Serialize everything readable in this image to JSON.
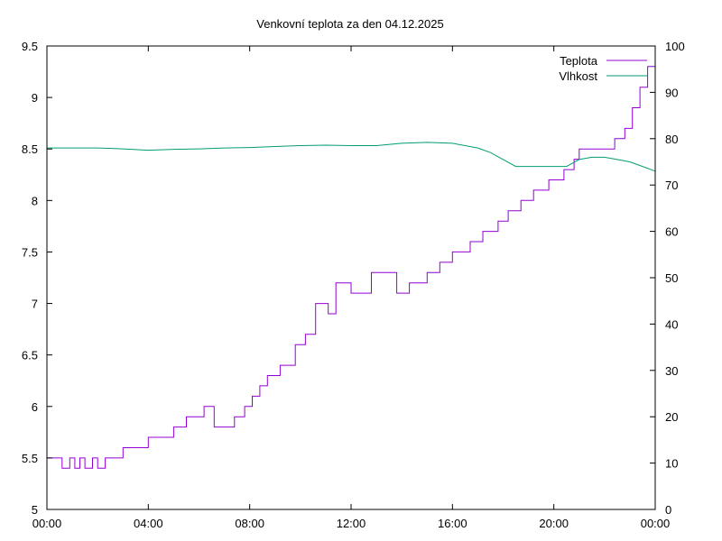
{
  "chart_data": {
    "type": "line",
    "title": "Venkovní teplota za den 04.12.2025",
    "xlabel": "",
    "ylabel": "",
    "y2label": "",
    "x_unit": "hours",
    "xlim": [
      0,
      24
    ],
    "ylim": [
      5,
      9.5
    ],
    "y2lim": [
      0,
      100
    ],
    "x_ticks": [
      0,
      4,
      8,
      12,
      16,
      20,
      24
    ],
    "x_tick_labels": [
      "00:00",
      "04:00",
      "08:00",
      "12:00",
      "16:00",
      "20:00",
      "00:00"
    ],
    "y_ticks": [
      5,
      5.5,
      6,
      6.5,
      7,
      7.5,
      8,
      8.5,
      9,
      9.5
    ],
    "y_tick_labels": [
      "5",
      "5.5",
      "6",
      "6.5",
      "7",
      "7.5",
      "8",
      "8.5",
      "9",
      "9.5"
    ],
    "y2_ticks": [
      0,
      10,
      20,
      30,
      40,
      50,
      60,
      70,
      80,
      90,
      100
    ],
    "y2_tick_labels": [
      "0",
      "10",
      "20",
      "30",
      "40",
      "50",
      "60",
      "70",
      "80",
      "90",
      "100"
    ],
    "grid": false,
    "legend_position": "top-right",
    "series": [
      {
        "name": "Teplota",
        "axis": "left",
        "color": "#9400d3",
        "step": true,
        "x": [
          0,
          0.6,
          0.9,
          1.1,
          1.3,
          1.5,
          1.8,
          2.0,
          2.3,
          2.6,
          3.0,
          3.4,
          4.0,
          4.5,
          5.0,
          5.5,
          5.9,
          6.2,
          6.6,
          6.8,
          7.4,
          7.8,
          8.1,
          8.4,
          8.7,
          9.2,
          9.8,
          10.2,
          10.6,
          10.9,
          11.1,
          11.4,
          12.0,
          12.8,
          13.8,
          14.3,
          15.0,
          15.5,
          16.0,
          16.7,
          17.2,
          17.8,
          18.2,
          18.7,
          19.2,
          19.8,
          20.4,
          20.8,
          21.0,
          21.6,
          22.2,
          22.4,
          22.8,
          23.1,
          23.4,
          23.7,
          24.0
        ],
        "values": [
          5.5,
          5.4,
          5.5,
          5.4,
          5.5,
          5.4,
          5.5,
          5.4,
          5.5,
          5.5,
          5.6,
          5.6,
          5.7,
          5.7,
          5.8,
          5.9,
          5.9,
          6.0,
          5.8,
          5.8,
          5.9,
          6.0,
          6.1,
          6.2,
          6.3,
          6.4,
          6.6,
          6.7,
          7.0,
          7.0,
          6.9,
          7.2,
          7.1,
          7.3,
          7.1,
          7.2,
          7.3,
          7.4,
          7.5,
          7.6,
          7.7,
          7.8,
          7.9,
          8.0,
          8.1,
          8.2,
          8.3,
          8.4,
          8.5,
          8.5,
          8.5,
          8.6,
          8.7,
          8.9,
          9.1,
          9.3,
          9.5
        ]
      },
      {
        "name": "Vlhkost",
        "axis": "right",
        "color": "#009e73",
        "step": false,
        "x": [
          0,
          1,
          2,
          3,
          4,
          5,
          6,
          7,
          8,
          9,
          10,
          11,
          12,
          13,
          14,
          15,
          16,
          17,
          17.5,
          18,
          18.5,
          19,
          19.5,
          20,
          20.5,
          21,
          21.5,
          22,
          22.5,
          23,
          23.5,
          24
        ],
        "values": [
          78,
          78,
          78,
          77.8,
          77.5,
          77.7,
          77.8,
          78,
          78.1,
          78.3,
          78.5,
          78.6,
          78.5,
          78.5,
          79,
          79.2,
          79,
          78,
          77,
          75.5,
          74,
          74,
          74,
          74,
          74,
          75.5,
          76,
          76,
          75.5,
          75,
          74,
          73
        ]
      }
    ]
  }
}
